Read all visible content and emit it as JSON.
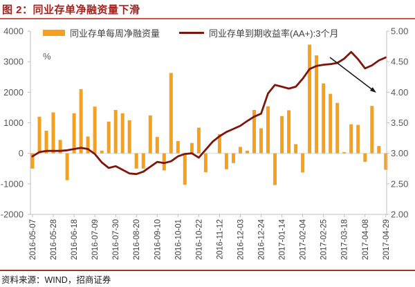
{
  "title": "图 2：同业存单净融资量下滑",
  "source": "资料来源：WIND，招商证券",
  "legend": [
    {
      "label": "同业存单每周净融资量",
      "type": "bar"
    },
    {
      "label": "同业存单到期收益率(AA+):3个月",
      "type": "line"
    }
  ],
  "colors": {
    "bar": "#F6A01E",
    "line": "#7E150C",
    "title": "#A6211B",
    "rule_top": "#C9554E",
    "rule_bottom": "#9A382C",
    "axis": "#BFBFBF",
    "zero_line": "#DADADA",
    "tick_text": "#595959",
    "date_text": "#404040",
    "arrow": "#1A1A1A"
  },
  "chart_data": {
    "type": "bar+line",
    "unit_label": "%",
    "left_axis": {
      "ticks": [
        "4000",
        "3000",
        "2000",
        "1000",
        "0",
        "-1000",
        "-2000"
      ],
      "min": -2000,
      "max": 4000
    },
    "right_axis": {
      "ticks": [
        "5.00",
        "4.50",
        "4.00",
        "3.50",
        "3.00",
        "2.50",
        "2.00"
      ],
      "min": 2.0,
      "max": 5.0
    },
    "x_tick_labels": [
      "2016-05-07",
      "2016-05-28",
      "2016-06-18",
      "2016-07-09",
      "2016-07-30",
      "2016-08-20",
      "2016-09-10",
      "2016-10-01",
      "2016-10-22",
      "2016-11-12",
      "2016-12-03",
      "2016-12-24",
      "2017-01-14",
      "2017-02-04",
      "2017-02-25",
      "2017-03-18",
      "2017-04-08",
      "2017-04-29"
    ],
    "x_tick_every": 3,
    "series": [
      {
        "name": "同业存单每周净融资量",
        "type": "bar",
        "axis": "left",
        "values": [
          -500,
          1200,
          740,
          1340,
          440,
          -880,
          1310,
          2100,
          550,
          1530,
          90,
          1040,
          1420,
          1310,
          1080,
          -500,
          -500,
          1240,
          535,
          -560,
          2630,
          400,
          -1030,
          340,
          840,
          -620,
          0,
          630,
          -520,
          -320,
          210,
          85,
          1420,
          820,
          1540,
          -1040,
          1220,
          1410,
          300,
          -630,
          3560,
          3205,
          2290,
          1950,
          1650,
          40,
          950,
          930,
          -280,
          1550,
          240,
          -540
        ]
      },
      {
        "name": "同业存单到期收益率(AA+):3个月",
        "type": "line",
        "axis": "right",
        "values": [
          2.95,
          3.02,
          3.04,
          3.04,
          3.04,
          3.05,
          3.07,
          3.09,
          3.07,
          2.99,
          2.85,
          2.76,
          2.79,
          2.73,
          2.67,
          2.66,
          2.7,
          2.78,
          2.86,
          2.84,
          2.87,
          2.95,
          2.99,
          3.0,
          2.93,
          3.06,
          3.19,
          3.28,
          3.35,
          3.4,
          3.45,
          3.53,
          3.6,
          3.65,
          3.98,
          4.12,
          4.09,
          4.06,
          4.09,
          4.22,
          4.38,
          4.43,
          4.45,
          4.46,
          4.48,
          4.55,
          4.66,
          4.54,
          4.39,
          4.44,
          4.52,
          4.57
        ]
      }
    ],
    "annotation_arrow": {
      "from": [
        477,
        83
      ],
      "to": [
        544,
        134
      ]
    }
  }
}
